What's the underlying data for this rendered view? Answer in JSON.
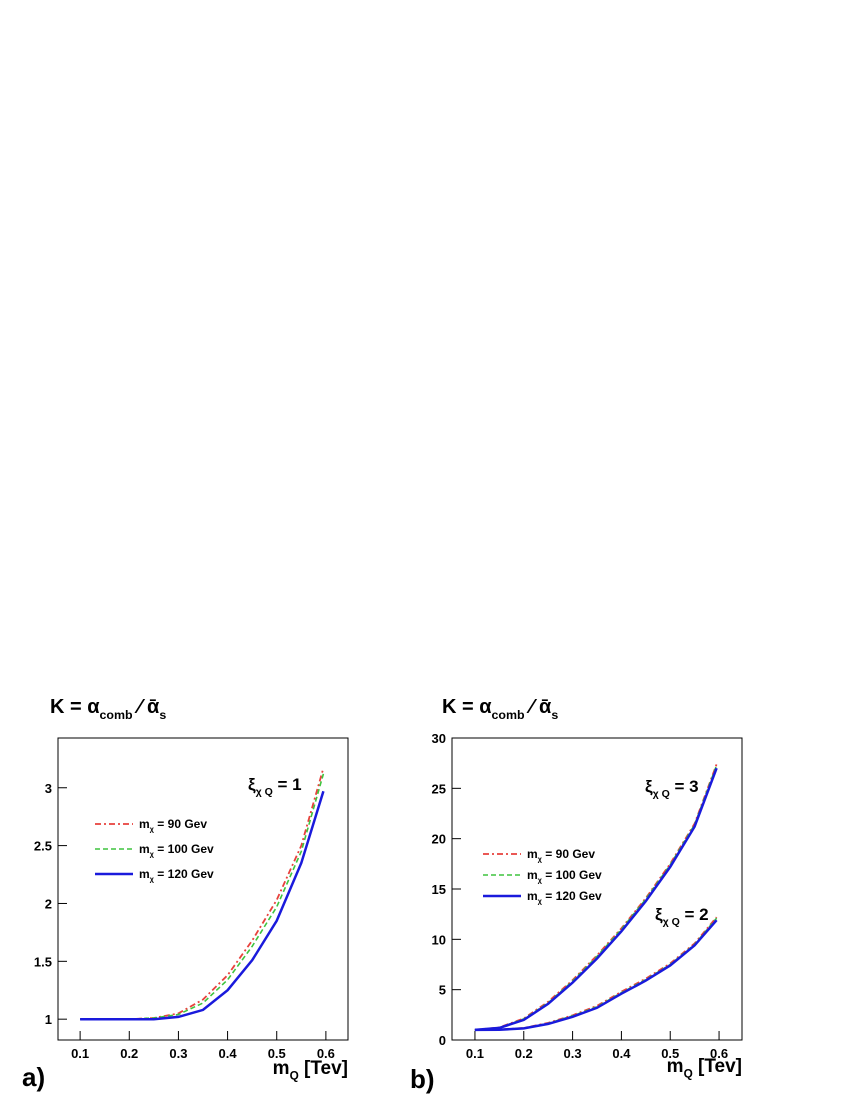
{
  "chart_data": [
    {
      "type": "line",
      "label": "a)",
      "title": [
        {
          "text": "K = α"
        },
        {
          "text": "comb",
          "sub": true
        },
        {
          "text": " ⁄  ᾱ"
        },
        {
          "text": "s",
          "sub": true
        }
      ],
      "x_label": [
        {
          "text": "m"
        },
        {
          "text": "Q",
          "sub": true
        },
        {
          "text": " [Tev]"
        }
      ],
      "annotations": [
        [
          {
            "text": "ξ"
          },
          {
            "text": "χ Q",
            "sub": true
          },
          {
            "text": " = 1"
          }
        ]
      ],
      "x": [
        0.1,
        0.15,
        0.2,
        0.25,
        0.3,
        0.35,
        0.4,
        0.45,
        0.5,
        0.55,
        0.595
      ],
      "xlim": [
        0.055,
        0.645
      ],
      "xticks": [
        0.1,
        0.2,
        0.3,
        0.4,
        0.5,
        0.6
      ],
      "ylim": [
        0.82,
        3.43
      ],
      "yticks": [
        1,
        1.5,
        2,
        2.5,
        3
      ],
      "series": [
        {
          "name": [
            {
              "text": "m"
            },
            {
              "text": "χ",
              "sub": true
            },
            {
              "text": " = 90 Gev"
            }
          ],
          "color": "#e8413c",
          "style": "dashdot",
          "values": [
            1,
            1,
            1,
            1.01,
            1.05,
            1.17,
            1.38,
            1.68,
            2.03,
            2.5,
            3.17
          ]
        },
        {
          "name": [
            {
              "text": "m"
            },
            {
              "text": "χ",
              "sub": true
            },
            {
              "text": " = 100 Gev"
            }
          ],
          "color": "#3ec43e",
          "style": "dashed",
          "values": [
            1,
            1,
            1,
            1.01,
            1.04,
            1.14,
            1.34,
            1.63,
            1.97,
            2.45,
            3.12
          ]
        },
        {
          "name": [
            {
              "text": "m"
            },
            {
              "text": "χ",
              "sub": true
            },
            {
              "text": " = 120 Gev"
            }
          ],
          "color": "#1a1adc",
          "style": "solid",
          "values": [
            1,
            1,
            1,
            1,
            1.02,
            1.08,
            1.25,
            1.51,
            1.85,
            2.35,
            2.97
          ]
        }
      ]
    },
    {
      "type": "line",
      "label": "b)",
      "title": [
        {
          "text": "K = α"
        },
        {
          "text": "comb",
          "sub": true
        },
        {
          "text": " ⁄  ᾱ"
        },
        {
          "text": "s",
          "sub": true
        }
      ],
      "x_label": [
        {
          "text": "m"
        },
        {
          "text": "Q",
          "sub": true
        },
        {
          "text": " [Tev]"
        }
      ],
      "annotations": [
        [
          {
            "text": "ξ"
          },
          {
            "text": "χ Q",
            "sub": true
          },
          {
            "text": " = 3"
          }
        ],
        [
          {
            "text": "ξ"
          },
          {
            "text": "χ Q",
            "sub": true
          },
          {
            "text": " = 2"
          }
        ]
      ],
      "x": [
        0.1,
        0.15,
        0.2,
        0.25,
        0.3,
        0.35,
        0.4,
        0.45,
        0.5,
        0.55,
        0.595
      ],
      "xlim": [
        0.053,
        0.647
      ],
      "xticks": [
        0.1,
        0.2,
        0.3,
        0.4,
        0.5,
        0.6
      ],
      "ylim": [
        0,
        30
      ],
      "yticks": [
        0,
        5,
        10,
        15,
        20,
        25,
        30
      ],
      "series": [
        {
          "name": [
            {
              "text": "m"
            },
            {
              "text": "χ",
              "sub": true
            },
            {
              "text": " = 90 Gev"
            }
          ],
          "color": "#e8413c",
          "style": "dashdot",
          "values": [
            1,
            1.25,
            2.15,
            3.8,
            5.95,
            8.4,
            11.1,
            14.1,
            17.5,
            21.5,
            27.4
          ],
          "values_xi2": [
            1,
            1.03,
            1.2,
            1.7,
            2.45,
            3.4,
            4.8,
            6.1,
            7.6,
            9.6,
            12.2
          ]
        },
        {
          "name": [
            {
              "text": "m"
            },
            {
              "text": "χ",
              "sub": true
            },
            {
              "text": " = 100 Gev"
            }
          ],
          "color": "#3ec43e",
          "style": "dashed",
          "values": [
            1,
            1.22,
            2.1,
            3.7,
            5.85,
            8.3,
            11,
            14,
            17.4,
            21.4,
            27.3
          ],
          "values_xi2": [
            1,
            1.03,
            1.18,
            1.65,
            2.4,
            3.3,
            4.7,
            6,
            7.5,
            9.5,
            12.1
          ]
        },
        {
          "name": [
            {
              "text": "m"
            },
            {
              "text": "χ",
              "sub": true
            },
            {
              "text": " = 120 Gev"
            }
          ],
          "color": "#1a1adc",
          "style": "solid",
          "values": [
            1,
            1.2,
            2,
            3.6,
            5.7,
            8.1,
            10.8,
            13.8,
            17.2,
            21.2,
            27
          ],
          "values_xi2": [
            1,
            1.02,
            1.15,
            1.6,
            2.3,
            3.2,
            4.6,
            5.9,
            7.4,
            9.4,
            11.9
          ]
        }
      ]
    }
  ]
}
